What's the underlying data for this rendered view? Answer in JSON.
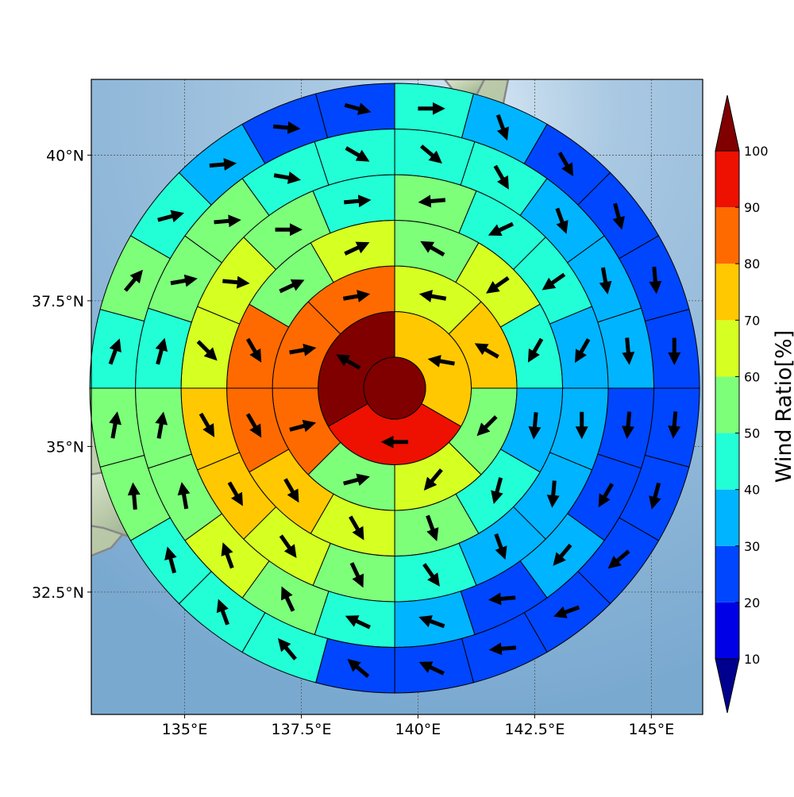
{
  "chart_data": {
    "type": "heatmap",
    "title": "",
    "map": {
      "lon_range": [
        133.0,
        146.1
      ],
      "lat_range": [
        30.4,
        41.3
      ],
      "center": {
        "lon": 139.5,
        "lat": 36.0
      },
      "xticks": [
        135.0,
        137.5,
        140.0,
        142.5,
        145.0
      ],
      "xtick_labels": [
        "135°E",
        "137.5°E",
        "140°E",
        "142.5°E",
        "145°E"
      ],
      "yticks": [
        32.5,
        35.0,
        37.5,
        40.0
      ],
      "ytick_labels": [
        "32.5°N",
        "35°N",
        "37.5°N",
        "40°N"
      ],
      "gridlines": true
    },
    "colorbar": {
      "label": "Wind Ratio[%]",
      "levels": [
        10,
        20,
        30,
        40,
        50,
        60,
        70,
        80,
        90,
        100
      ],
      "tick_labels": [
        "10",
        "20",
        "30",
        "40",
        "50",
        "60",
        "70",
        "80",
        "90",
        "100"
      ],
      "extend": "both",
      "colors": {
        "under": "#00008f",
        "10-20": "#0000e6",
        "20-30": "#0046ff",
        "30-40": "#00b4ff",
        "40-50": "#22ffd6",
        "50-60": "#7dff7a",
        "60-70": "#d6ff22",
        "70-80": "#ffc800",
        "80-90": "#ff6a00",
        "90-100": "#ee1000",
        "over": "#800000"
      }
    },
    "center_value": 100,
    "rings": [
      {
        "sectors": 3,
        "values": [
          70,
          95,
          100
        ],
        "arrows": [
          {
            "dir": 280,
            "len": 1.0
          },
          {
            "dir": 270,
            "len": 1.0
          },
          {
            "dir": 300,
            "len": 1.0
          }
        ]
      },
      {
        "sectors": 8,
        "values": [
          65,
          75,
          55,
          60,
          55,
          85,
          85,
          85
        ],
        "arrows": [
          {
            "dir": 280,
            "len": 1.0
          },
          {
            "dir": 300,
            "len": 1.0
          },
          {
            "dir": 225,
            "len": 1.0
          },
          {
            "dir": 220,
            "len": 1.0
          },
          {
            "dir": 75,
            "len": 1.0
          },
          {
            "dir": 75,
            "len": 1.0
          },
          {
            "dir": 80,
            "len": 1.0
          },
          {
            "dir": 80,
            "len": 1.0
          }
        ]
      },
      {
        "sectors": 12,
        "values": [
          55,
          65,
          45,
          35,
          45,
          55,
          65,
          75,
          85,
          85,
          55,
          65
        ],
        "arrows": [
          {
            "dir": 300,
            "len": 1.0
          },
          {
            "dir": 235,
            "len": 1.0
          },
          {
            "dir": 210,
            "len": 1.0
          },
          {
            "dir": 185,
            "len": 1.0
          },
          {
            "dir": 195,
            "len": 1.0
          },
          {
            "dir": 160,
            "len": 1.0
          },
          {
            "dir": 150,
            "len": 1.0
          },
          {
            "dir": 150,
            "len": 1.0
          },
          {
            "dir": 150,
            "len": 1.0
          },
          {
            "dir": 150,
            "len": 1.0
          },
          {
            "dir": 65,
            "len": 1.0
          },
          {
            "dir": 65,
            "len": 1.0
          }
        ]
      },
      {
        "sectors": 16,
        "values": [
          55,
          45,
          45,
          35,
          35,
          35,
          35,
          45,
          55,
          65,
          75,
          75,
          65,
          65,
          55,
          45
        ],
        "arrows": [
          {
            "dir": 265,
            "len": 1.0
          },
          {
            "dir": 245,
            "len": 1.0
          },
          {
            "dir": 235,
            "len": 1.0
          },
          {
            "dir": 210,
            "len": 1.0
          },
          {
            "dir": 180,
            "len": 1.0
          },
          {
            "dir": 185,
            "len": 1.0
          },
          {
            "dir": 160,
            "len": 1.0
          },
          {
            "dir": 145,
            "len": 1.0
          },
          {
            "dir": 155,
            "len": 1.0
          },
          {
            "dir": 145,
            "len": 1.0
          },
          {
            "dir": 150,
            "len": 1.0
          },
          {
            "dir": 150,
            "len": 1.0
          },
          {
            "dir": 135,
            "len": 1.0
          },
          {
            "dir": 95,
            "len": 1.0
          },
          {
            "dir": 90,
            "len": 1.0
          },
          {
            "dir": 85,
            "len": 1.0
          }
        ]
      },
      {
        "sectors": 20,
        "values": [
          45,
          45,
          35,
          35,
          35,
          25,
          25,
          35,
          25,
          35,
          45,
          55,
          65,
          55,
          55,
          45,
          55,
          55,
          45,
          45
        ],
        "arrows": [
          {
            "dir": 130,
            "len": 1.0
          },
          {
            "dir": 150,
            "len": 1.0
          },
          {
            "dir": 160,
            "len": 1.0
          },
          {
            "dir": 170,
            "len": 1.0
          },
          {
            "dir": 175,
            "len": 1.0
          },
          {
            "dir": 185,
            "len": 1.0
          },
          {
            "dir": 210,
            "len": 1.0
          },
          {
            "dir": 220,
            "len": 1.0
          },
          {
            "dir": 265,
            "len": 1.0
          },
          {
            "dir": 290,
            "len": 1.0
          },
          {
            "dir": 295,
            "len": 1.0
          },
          {
            "dir": 335,
            "len": 1.0
          },
          {
            "dir": 340,
            "len": 1.0
          },
          {
            "dir": 350,
            "len": 1.0
          },
          {
            "dir": 10,
            "len": 1.0
          },
          {
            "dir": 15,
            "len": 1.0
          },
          {
            "dir": 80,
            "len": 1.0
          },
          {
            "dir": 85,
            "len": 1.0
          },
          {
            "dir": 100,
            "len": 1.0
          },
          {
            "dir": 120,
            "len": 1.0
          }
        ]
      },
      {
        "sectors": 24,
        "values": [
          45,
          35,
          25,
          25,
          25,
          25,
          25,
          25,
          25,
          25,
          25,
          25,
          25,
          45,
          45,
          45,
          55,
          55,
          45,
          55,
          45,
          35,
          25,
          25
        ],
        "arrows": [
          {
            "dir": 90,
            "len": 1.0
          },
          {
            "dir": 160,
            "len": 1.0
          },
          {
            "dir": 150,
            "len": 1.0
          },
          {
            "dir": 165,
            "len": 1.0
          },
          {
            "dir": 175,
            "len": 1.0
          },
          {
            "dir": 180,
            "len": 1.0
          },
          {
            "dir": 185,
            "len": 1.0
          },
          {
            "dir": 195,
            "len": 1.0
          },
          {
            "dir": 230,
            "len": 1.0
          },
          {
            "dir": 250,
            "len": 1.0
          },
          {
            "dir": 265,
            "len": 1.0
          },
          {
            "dir": 295,
            "len": 1.0
          },
          {
            "dir": 310,
            "len": 1.0
          },
          {
            "dir": 320,
            "len": 1.0
          },
          {
            "dir": 340,
            "len": 1.0
          },
          {
            "dir": 345,
            "len": 1.0
          },
          {
            "dir": 355,
            "len": 1.0
          },
          {
            "dir": 10,
            "len": 1.0
          },
          {
            "dir": 20,
            "len": 1.0
          },
          {
            "dir": 40,
            "len": 1.0
          },
          {
            "dir": 75,
            "len": 1.0
          },
          {
            "dir": 85,
            "len": 1.0
          },
          {
            "dir": 95,
            "len": 1.0
          },
          {
            "dir": 105,
            "len": 1.0
          }
        ]
      }
    ]
  }
}
